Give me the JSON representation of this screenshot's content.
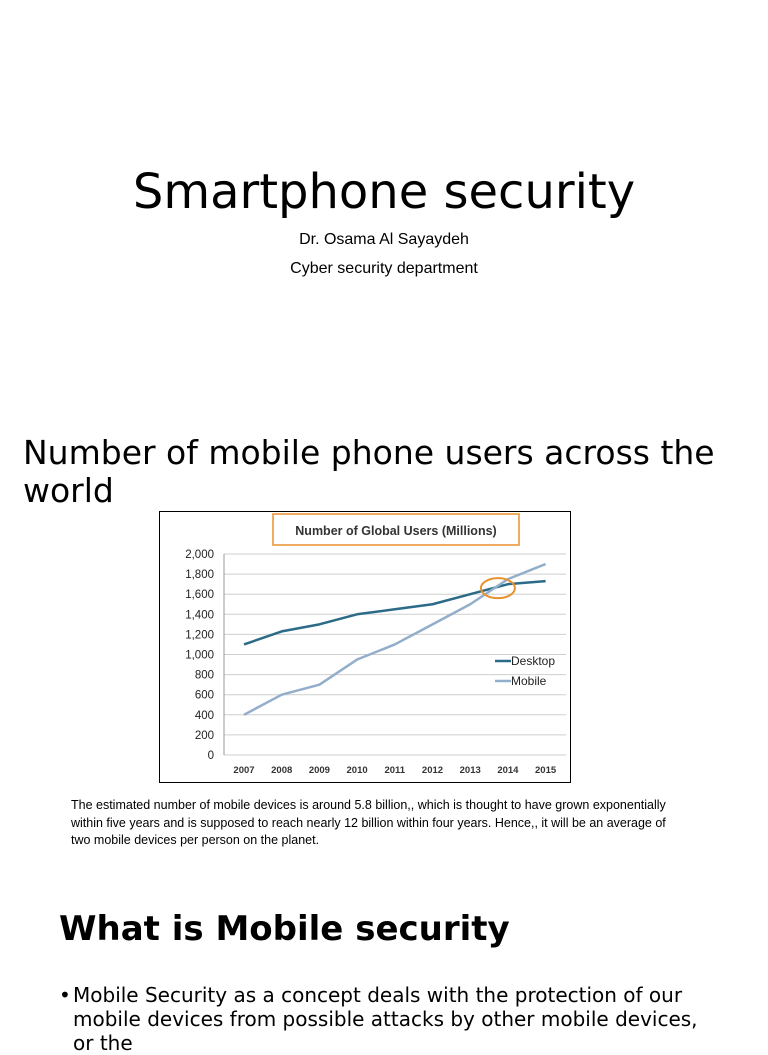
{
  "slide1": {
    "title": "Smartphone security",
    "author": "Dr. Osama Al Sayaydeh",
    "department": "Cyber  security department"
  },
  "slide2": {
    "title": "Number of mobile phone users across the world",
    "caption": "The estimated number of mobile devices is around 5.8 billion,, which is thought to have grown exponentially within five years and is supposed to reach nearly 12 billion within four years. Hence,, it will be an average of two mobile devices per person on the planet."
  },
  "slide3": {
    "title": "What is Mobile security",
    "bullet_marker": "•",
    "bullet": "Mobile Security as a concept deals with the protection of our mobile devices from possible attacks by other mobile devices, or the"
  },
  "chart_data": {
    "type": "line",
    "title": "Number of Global Users (Millions)",
    "categories": [
      "2007",
      "2008",
      "2009",
      "2010",
      "2011",
      "2012",
      "2013",
      "2014",
      "2015"
    ],
    "y_ticks": [
      "0",
      "200",
      "400",
      "600",
      "800",
      "1,000",
      "1,200",
      "1,400",
      "1,600",
      "1,800",
      "2,000"
    ],
    "ylim": [
      0,
      2000
    ],
    "grid": true,
    "legend_position": "right",
    "series": [
      {
        "name": "Desktop",
        "color": "#2c6b87",
        "values": [
          1100,
          1230,
          1300,
          1400,
          1450,
          1500,
          1600,
          1700,
          1730
        ]
      },
      {
        "name": "Mobile",
        "color": "#93aecb",
        "values": [
          400,
          600,
          700,
          950,
          1100,
          1300,
          1500,
          1750,
          1900
        ]
      }
    ],
    "highlight": {
      "x": "2014",
      "y": 1660,
      "color": "#e8912e"
    },
    "title_box_color": "#e8912e"
  }
}
